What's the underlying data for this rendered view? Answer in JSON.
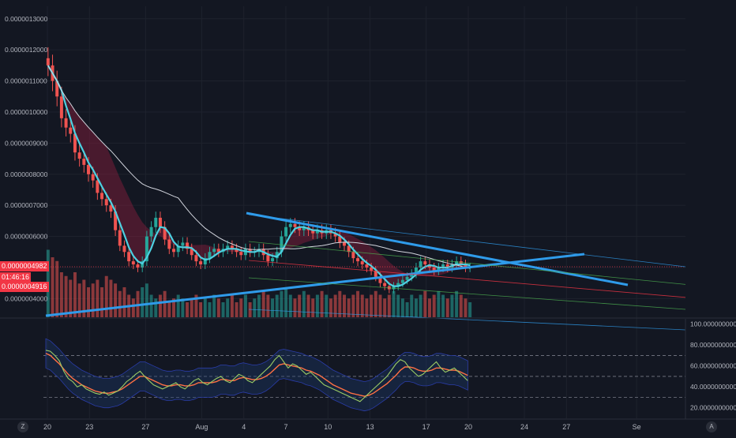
{
  "chart_data": [
    {
      "type": "candlestick",
      "price_axis": {
        "ticks": [
          "0.0000013000",
          "0.0000012000",
          "0.0000011000",
          "0.0000010000",
          "0.0000009000",
          "0.0000008000",
          "0.0000007000",
          "0.0000006000",
          "0.0000005000",
          "0.0000004000"
        ],
        "tick_values": [
          1.3e-06,
          1.2e-06,
          1.1e-06,
          1e-06,
          9e-07,
          8e-07,
          7e-07,
          6e-07,
          5e-07,
          4e-07
        ],
        "range": [
          3.4e-07,
          1.34e-06
        ]
      },
      "time_axis": {
        "labels": [
          "20",
          "23",
          "27",
          "Aug",
          "4",
          "7",
          "10",
          "13",
          "17",
          "20",
          "24",
          "27",
          "Se"
        ],
        "label_days": [
          0,
          3,
          7,
          11,
          14,
          17,
          20,
          23,
          27,
          30,
          34,
          37,
          42
        ]
      },
      "last_price": "0.0000004982",
      "countdown": "01:46:16",
      "bid_price": "0.0000004916",
      "last_price_value": 4.982e-07,
      "colors": {
        "up": "#26a69a",
        "down": "#ef5350",
        "ma_fast": "#4dd0e1",
        "ma_slow": "#d1d4dc",
        "trendline": "#2f9bea"
      },
      "candles_close": [
        1.15,
        1.1,
        1.05,
        0.98,
        0.95,
        0.93,
        0.87,
        0.85,
        0.83,
        0.8,
        0.78,
        0.74,
        0.72,
        0.7,
        0.68,
        0.62,
        0.57,
        0.55,
        0.52,
        0.51,
        0.5,
        0.52,
        0.6,
        0.63,
        0.66,
        0.63,
        0.59,
        0.56,
        0.55,
        0.57,
        0.58,
        0.56,
        0.54,
        0.52,
        0.51,
        0.53,
        0.55,
        0.56,
        0.55,
        0.56,
        0.57,
        0.56,
        0.55,
        0.54,
        0.56,
        0.55,
        0.55,
        0.56,
        0.54,
        0.52,
        0.53,
        0.55,
        0.6,
        0.63,
        0.64,
        0.63,
        0.62,
        0.63,
        0.62,
        0.61,
        0.62,
        0.61,
        0.62,
        0.61,
        0.6,
        0.58,
        0.57,
        0.55,
        0.53,
        0.52,
        0.51,
        0.5,
        0.49,
        0.47,
        0.45,
        0.44,
        0.43,
        0.44,
        0.45,
        0.46,
        0.47,
        0.48,
        0.5,
        0.52,
        0.51,
        0.5,
        0.49,
        0.5,
        0.51,
        0.5,
        0.51,
        0.52,
        0.51,
        0.5,
        0.5
      ],
      "volume": [
        0.9,
        0.8,
        0.75,
        0.6,
        0.55,
        0.5,
        0.6,
        0.45,
        0.5,
        0.4,
        0.45,
        0.5,
        0.4,
        0.55,
        0.5,
        0.45,
        0.35,
        0.4,
        0.3,
        0.25,
        0.35,
        0.4,
        0.45,
        0.3,
        0.25,
        0.3,
        0.35,
        0.2,
        0.25,
        0.3,
        0.25,
        0.2,
        0.25,
        0.3,
        0.2,
        0.25,
        0.2,
        0.3,
        0.25,
        0.2,
        0.25,
        0.3,
        0.2,
        0.25,
        0.3,
        0.2,
        0.25,
        0.3,
        0.35,
        0.3,
        0.25,
        0.3,
        0.35,
        0.4,
        0.3,
        0.25,
        0.3,
        0.35,
        0.3,
        0.25,
        0.3,
        0.35,
        0.3,
        0.25,
        0.3,
        0.35,
        0.3,
        0.25,
        0.3,
        0.35,
        0.3,
        0.25,
        0.3,
        0.35,
        0.3,
        0.25,
        0.3,
        0.35,
        0.3,
        0.25,
        0.2,
        0.3,
        0.25,
        0.3,
        0.35,
        0.25,
        0.3,
        0.35,
        0.3,
        0.25,
        0.3,
        0.35,
        0.3,
        0.25,
        0.2
      ]
    },
    {
      "type": "line",
      "axis_ticks": [
        "100.0000000000",
        "80.0000000000",
        "60.0000000000",
        "40.0000000000",
        "20.0000000000"
      ],
      "tick_values": [
        100,
        80,
        60,
        40,
        20
      ],
      "range": [
        10,
        105
      ],
      "levels": [
        70,
        50,
        30
      ],
      "rsi": [
        75,
        74,
        70,
        65,
        55,
        48,
        45,
        40,
        42,
        38,
        36,
        34,
        33,
        35,
        32,
        34,
        36,
        40,
        45,
        48,
        52,
        55,
        50,
        46,
        42,
        40,
        38,
        40,
        42,
        44,
        40,
        38,
        42,
        46,
        48,
        44,
        42,
        45,
        48,
        50,
        46,
        44,
        48,
        52,
        50,
        46,
        44,
        48,
        52,
        56,
        60,
        66,
        70,
        64,
        58,
        62,
        60,
        56,
        52,
        54,
        50,
        46,
        42,
        40,
        38,
        36,
        34,
        32,
        30,
        28,
        26,
        30,
        34,
        38,
        42,
        46,
        50,
        56,
        62,
        66,
        64,
        58,
        54,
        50,
        52,
        56,
        60,
        64,
        58,
        54,
        56,
        58,
        54,
        50,
        46
      ],
      "signal": [
        72,
        70,
        66,
        62,
        57,
        52,
        48,
        45,
        42,
        40,
        38,
        36,
        35,
        34,
        34,
        35,
        36,
        38,
        41,
        44,
        47,
        50,
        50,
        48,
        46,
        44,
        42,
        41,
        41,
        42,
        42,
        41,
        41,
        42,
        44,
        44,
        44,
        44,
        45,
        47,
        47,
        46,
        46,
        48,
        49,
        48,
        47,
        47,
        48,
        50,
        53,
        57,
        61,
        62,
        61,
        60,
        59,
        58,
        56,
        55,
        53,
        51,
        48,
        45,
        42,
        40,
        38,
        36,
        34,
        33,
        32,
        31,
        32,
        34,
        37,
        40,
        43,
        47,
        51,
        56,
        59,
        59,
        58,
        56,
        55,
        55,
        56,
        58,
        58,
        57,
        56,
        56,
        55,
        53,
        51
      ]
    }
  ]
}
